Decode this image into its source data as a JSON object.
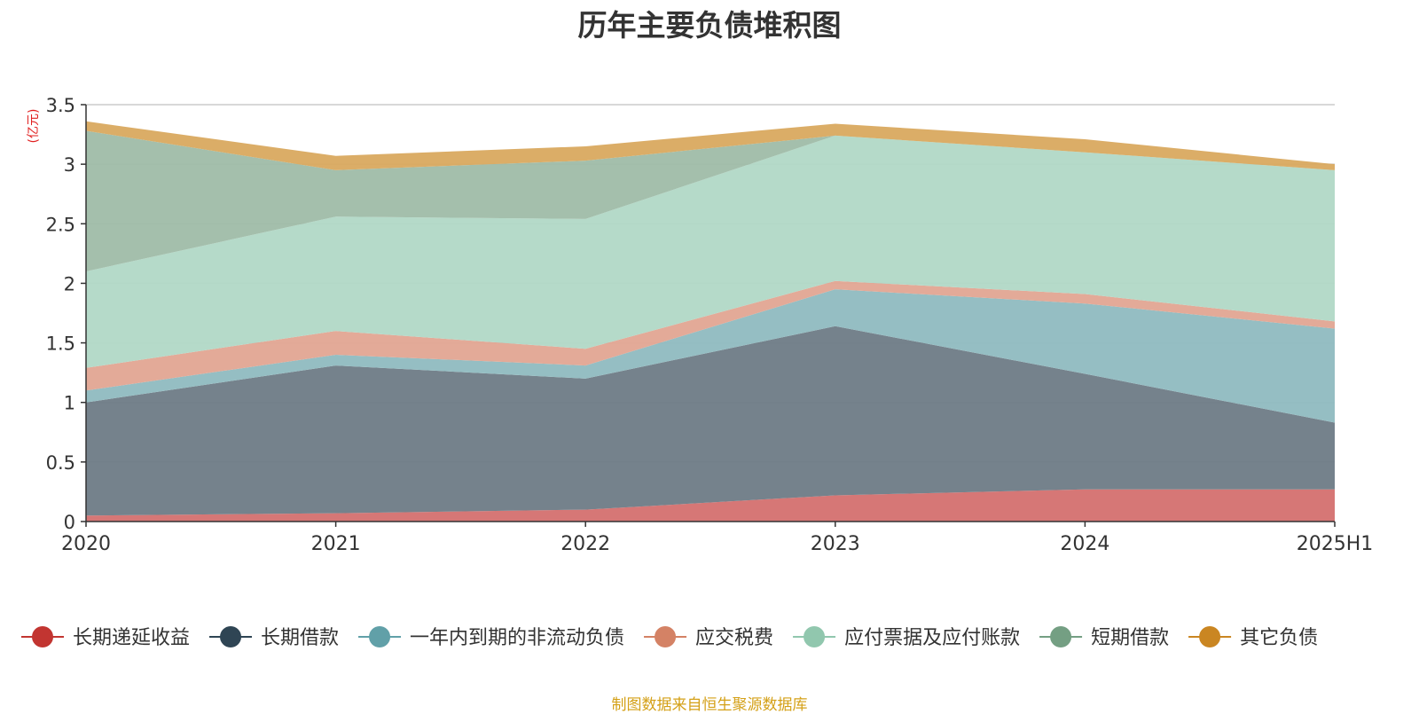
{
  "chart_data": {
    "type": "area",
    "stacked": true,
    "title": "历年主要负债堆积图",
    "unit_label": "(亿元)",
    "x": [
      "2020",
      "2021",
      "2022",
      "2023",
      "2024",
      "2025H1"
    ],
    "ylim": [
      0,
      3.5
    ],
    "yticks": [
      "0",
      "0.5",
      "1",
      "1.5",
      "2",
      "2.5",
      "3",
      "3.5"
    ],
    "grid": true,
    "legend_position": "bottom",
    "series": [
      {
        "name": "长期递延收益",
        "color": "#c23531",
        "fill": "#d4706f",
        "values": [
          0.05,
          0.07,
          0.1,
          0.22,
          0.27,
          0.27
        ]
      },
      {
        "name": "长期借款",
        "color": "#2f4554",
        "fill": "#6e7b86",
        "values": [
          0.95,
          1.24,
          1.1,
          1.42,
          0.97,
          0.56
        ]
      },
      {
        "name": "一年内到期的非流动负债",
        "color": "#61a0a8",
        "fill": "#8fbac0",
        "values": [
          0.1,
          0.09,
          0.11,
          0.31,
          0.59,
          0.79
        ]
      },
      {
        "name": "应交税费",
        "color": "#d48265",
        "fill": "#e2a592",
        "values": [
          0.19,
          0.2,
          0.14,
          0.07,
          0.08,
          0.06
        ]
      },
      {
        "name": "应付票据及应付账款",
        "color": "#91c7ae",
        "fill": "#b1d8c6",
        "values": [
          0.81,
          0.96,
          1.09,
          1.22,
          1.19,
          1.27
        ]
      },
      {
        "name": "短期借款",
        "color": "#749f83",
        "fill": "#9fbca8",
        "values": [
          1.18,
          0.39,
          0.49,
          0.0,
          0.0,
          0.0
        ]
      },
      {
        "name": "其它负债",
        "color": "#ca8622",
        "fill": "#d9a95f",
        "values": [
          0.08,
          0.12,
          0.12,
          0.1,
          0.11,
          0.05
        ]
      }
    ]
  },
  "footer": {
    "source": "制图数据来自恒生聚源数据库"
  }
}
